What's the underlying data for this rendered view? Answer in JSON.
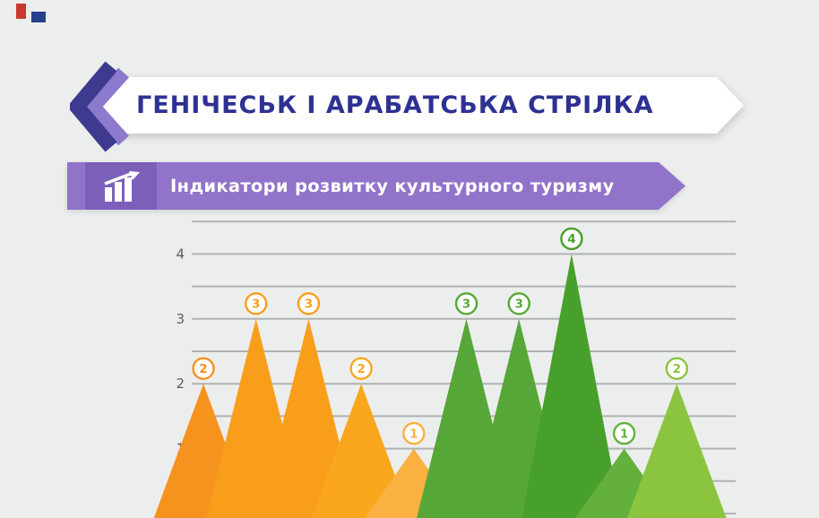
{
  "page": {
    "background": "#ECEEED"
  },
  "decor": {
    "red_mark_color": "#C8392F",
    "blue_mark_color": "#27408B"
  },
  "header": {
    "title": "ГЕНІЧЕСЬК І АРАБАТСЬКА СТРІЛКА",
    "title_color": "#2E3192",
    "chevron_dark_color": "#3D3A8F",
    "chevron_light_color": "#8D79CE"
  },
  "section_banner": {
    "label": "Індикатори розвитку культурного туризму",
    "icon": "bar-chart-trend-icon",
    "banner_color": "#9173C9",
    "icon_block_color": "#7C5FB9"
  },
  "chart_data": {
    "type": "area",
    "subtype": "triangular-peaks",
    "title": "Індикатори розвитку культурного туризму",
    "xlabel": "",
    "ylabel": "",
    "values": [
      2,
      3,
      3,
      2,
      1,
      3,
      3,
      4,
      1,
      2
    ],
    "value_labels": [
      "2",
      "3",
      "3",
      "2",
      "1",
      "3",
      "3",
      "4",
      "1",
      "2"
    ],
    "peak_colors": [
      "#F6921E",
      "#F99E1B",
      "#F99E1B",
      "#FAA71D",
      "#FBB042",
      "#56A738",
      "#56A738",
      "#48A02C",
      "#63B13C",
      "#8BC53F"
    ],
    "yticks": [
      1,
      2,
      3,
      4
    ],
    "ylim": [
      0,
      4.5
    ],
    "grid": true,
    "gridline_color": "#AFB3B4",
    "tick_label_color": "#5A5E60",
    "legend": null
  }
}
